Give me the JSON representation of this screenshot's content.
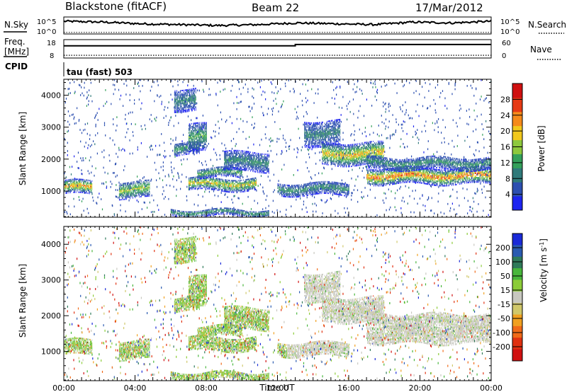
{
  "header": {
    "station": "Blackstone (fitACF)",
    "beam": "Beam 22",
    "date": "17/Mar/2012"
  },
  "top_panels": {
    "left_labels": [
      "N.Sky",
      "Freq.",
      "[MHz]",
      "CPID"
    ],
    "right_labels": [
      "N.Search",
      "Nave"
    ],
    "noise_ticks_left": [
      "10^5",
      "10^0"
    ],
    "noise_ticks_right": [
      "10^5",
      "10^0"
    ],
    "freq_ticks": [
      "18",
      "8"
    ],
    "nave_ticks": [
      "60",
      "0"
    ],
    "cpid_text": "tau (fast) 503"
  },
  "chart_data": [
    {
      "type": "line",
      "name": "noise-panel",
      "series_note": "N.Sky (solid) and N.Search (dotted)",
      "x_range": [
        "00:00",
        "24:00"
      ],
      "solid_level_approx": [
        0.75,
        0.7,
        0.6,
        0.55,
        0.5,
        0.55,
        0.65,
        0.6,
        0.55,
        0.7,
        0.65,
        0.75
      ],
      "dotted_level_approx": 0.05
    },
    {
      "type": "line",
      "name": "freq-nave-panel",
      "freq_step": {
        "time_hours": 13.0,
        "before_mhz_axis": 12,
        "after_nave_axis": 44
      },
      "nave_level": 9
    },
    {
      "type": "heatmap",
      "name": "power",
      "ylabel": "Slant Range [km]",
      "yticks": [
        1000,
        2000,
        3000,
        4000
      ],
      "ylim": [
        180,
        4500
      ],
      "xticks": [
        "00:00",
        "04:00",
        "08:00",
        "12:00",
        "16:00",
        "20:00",
        "00:00"
      ],
      "xlim_hours": [
        0,
        24
      ],
      "colorbar": {
        "label": "Power [dB]",
        "ticks": [
          4,
          8,
          12,
          16,
          20,
          24,
          28
        ],
        "range": [
          0,
          32
        ],
        "colors": [
          "#1d24f0",
          "#2c4fb0",
          "#2f7a7a",
          "#34a05a",
          "#8dc83c",
          "#f1c81c",
          "#f58a1a",
          "#e63a14",
          "#d01010"
        ]
      }
    },
    {
      "type": "heatmap",
      "name": "velocity",
      "ylabel": "Slant Range [km]",
      "yticks": [
        1000,
        2000,
        3000,
        4000
      ],
      "ylim": [
        180,
        4500
      ],
      "xticks": [
        "00:00",
        "04:00",
        "08:00",
        "12:00",
        "16:00",
        "20:00",
        "00:00"
      ],
      "xlabel": "Time UT",
      "xlim_hours": [
        0,
        24
      ],
      "colorbar": {
        "label": "Velocity [m s",
        "label_sup": "-1",
        "label_end": "]",
        "ticks": [
          200,
          100,
          50,
          15,
          -15,
          -50,
          -100,
          -200
        ],
        "colors": [
          "#1a2ad8",
          "#2a5ab0",
          "#2f7a5a",
          "#48b63c",
          "#8ccc38",
          "#c8c8c0",
          "#d0c86a",
          "#f0a020",
          "#f06a18",
          "#e03010",
          "#d01010"
        ]
      }
    }
  ],
  "echo_bands": [
    {
      "t0": 0.0,
      "t1": 1.6,
      "r0": 880,
      "r1": 1300,
      "peak": 24
    },
    {
      "t0": 3.1,
      "t1": 4.8,
      "r0": 760,
      "r1": 1300,
      "peak": 17
    },
    {
      "t0": 6.2,
      "t1": 7.4,
      "r0": 3500,
      "r1": 4200,
      "peak": 10
    },
    {
      "t0": 6.2,
      "t1": 7.6,
      "r0": 2100,
      "r1": 2500,
      "peak": 12
    },
    {
      "t0": 7.0,
      "t1": 8.0,
      "r0": 2200,
      "r1": 3100,
      "peak": 13
    },
    {
      "t0": 7.0,
      "t1": 10.8,
      "r0": 1000,
      "r1": 1400,
      "peak": 21
    },
    {
      "t0": 7.5,
      "t1": 10.0,
      "r0": 1400,
      "r1": 1700,
      "peak": 14
    },
    {
      "t0": 9.0,
      "t1": 11.5,
      "r0": 1600,
      "r1": 2200,
      "peak": 10
    },
    {
      "t0": 12.0,
      "t1": 16.0,
      "r0": 850,
      "r1": 1250,
      "peak": 11
    },
    {
      "t0": 13.5,
      "t1": 15.5,
      "r0": 2400,
      "r1": 3200,
      "peak": 9
    },
    {
      "t0": 14.5,
      "t1": 18.0,
      "r0": 1800,
      "r1": 2500,
      "peak": 22
    },
    {
      "t0": 17.0,
      "t1": 24.0,
      "r0": 1200,
      "r1": 1700,
      "peak": 27
    },
    {
      "t0": 17.0,
      "t1": 24.0,
      "r0": 1650,
      "r1": 2050,
      "peak": 11
    },
    {
      "t0": 6.0,
      "t1": 11.5,
      "r0": 200,
      "r1": 420,
      "peak": 12
    }
  ]
}
